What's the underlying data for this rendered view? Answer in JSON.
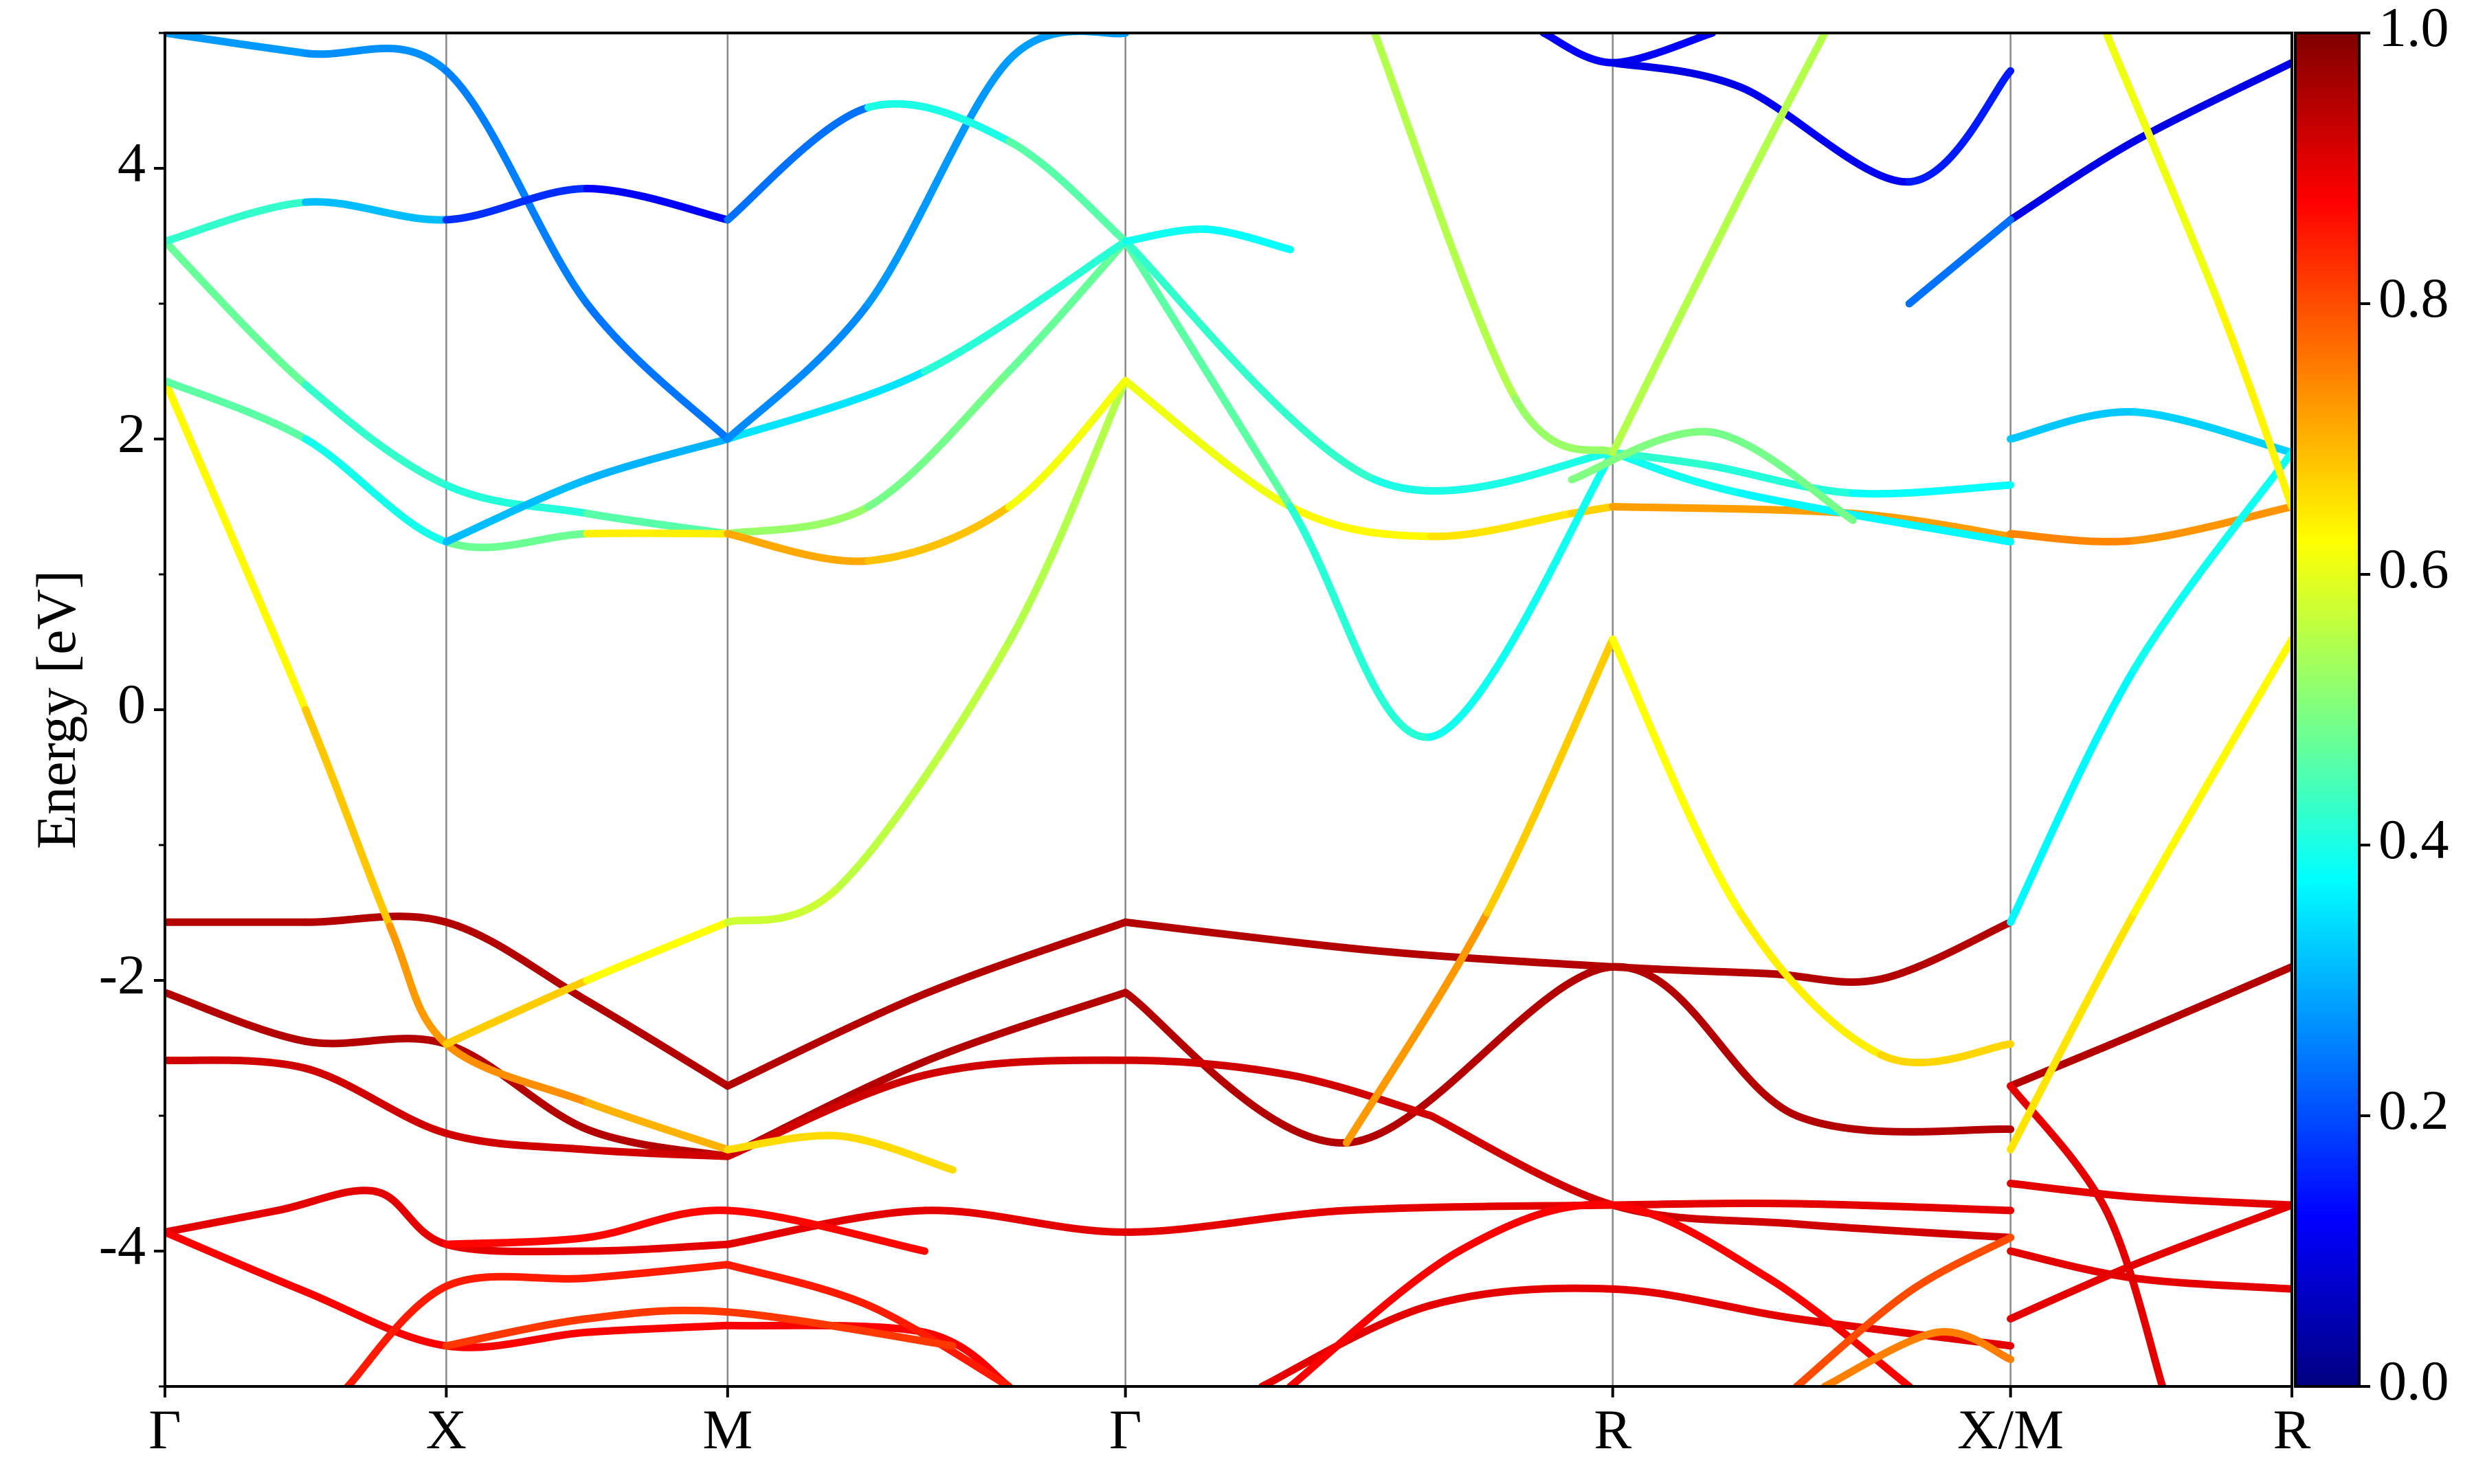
{
  "chart_data": {
    "type": "line",
    "title": "",
    "xlabel": "",
    "ylabel": "Energy [eV]",
    "ylim": [
      -5,
      5
    ],
    "yticks": [
      4,
      2,
      0,
      -2,
      -4
    ],
    "ytick_labels": [
      "4",
      "2",
      "0",
      "-2",
      "-4"
    ],
    "kpath": {
      "labels": [
        "Γ",
        "X",
        "M",
        "Γ",
        "R",
        "X/M",
        "R"
      ],
      "positions": [
        0.0,
        1.0,
        2.0,
        3.414,
        5.146,
        6.56,
        7.56
      ]
    },
    "colorbar": {
      "colormap": "jet",
      "range": [
        0.0,
        1.0
      ],
      "ticks": [
        0.0,
        0.2,
        0.4,
        0.6,
        0.8,
        1.0
      ],
      "tick_labels": [
        "0.0",
        "0.2",
        "0.4",
        "0.6",
        "0.8",
        "1.0"
      ]
    },
    "series": [
      {
        "x": [
          0,
          0.5,
          1.0,
          1.5,
          2.0
        ],
        "y": [
          -1.57,
          -1.57,
          -1.57,
          -2.15,
          -2.78
        ],
        "c": [
          0.95,
          0.95,
          0.95,
          0.95,
          0.95
        ]
      },
      {
        "x": [
          2.0,
          2.7,
          3.414
        ],
        "y": [
          -2.78,
          -2.1,
          -1.57
        ],
        "c": [
          0.95,
          0.95,
          0.95
        ]
      },
      {
        "x": [
          3.414,
          4.3,
          5.146,
          5.7,
          6.1,
          6.56
        ],
        "y": [
          -1.57,
          -1.78,
          -1.9,
          -1.95,
          -1.99,
          -1.57
        ],
        "c": [
          0.95,
          0.95,
          0.95,
          0.95,
          0.95,
          0.95
        ]
      },
      {
        "x": [
          6.56,
          7.0,
          7.56
        ],
        "y": [
          -2.78,
          -2.4,
          -1.9
        ],
        "c": [
          0.95,
          0.95,
          0.95
        ]
      },
      {
        "x": [
          0,
          0.5,
          1.0,
          1.5,
          2.0
        ],
        "y": [
          -2.09,
          -2.45,
          -2.47,
          -3.1,
          -3.3
        ],
        "c": [
          0.95,
          0.95,
          0.95,
          0.95,
          0.95
        ]
      },
      {
        "x": [
          2.0,
          2.7,
          3.414
        ],
        "y": [
          -3.3,
          -2.6,
          -2.09
        ],
        "c": [
          0.95,
          0.95,
          0.95
        ]
      },
      {
        "x": [
          3.414,
          4.2,
          5.146,
          5.8,
          6.56
        ],
        "y": [
          -2.09,
          -3.2,
          -1.9,
          -3.0,
          -3.1
        ],
        "c": [
          0.95,
          0.95,
          0.95,
          0.95,
          0.95
        ]
      },
      {
        "x": [
          0,
          0.5,
          1.0,
          1.5,
          2.0
        ],
        "y": [
          -2.59,
          -2.65,
          -3.13,
          -3.25,
          -3.3
        ],
        "c": [
          0.92,
          0.92,
          0.92,
          0.92,
          0.92
        ]
      },
      {
        "x": [
          2.0,
          2.7,
          3.414,
          4.0,
          4.5
        ],
        "y": [
          -3.3,
          -2.7,
          -2.59,
          -2.7,
          -3.0
        ],
        "c": [
          0.92,
          0.92,
          0.92,
          0.92,
          0.92
        ]
      },
      {
        "x": [
          4.5,
          5.146,
          5.8,
          6.56
        ],
        "y": [
          -3.0,
          -3.66,
          -3.8,
          -3.9
        ],
        "c": [
          0.92,
          0.92,
          0.92,
          0.92
        ]
      },
      {
        "x": [
          0,
          0.4,
          0.75,
          1.0,
          1.5,
          2.0
        ],
        "y": [
          -3.86,
          -3.7,
          -3.56,
          -3.95,
          -4.0,
          -3.95
        ],
        "c": [
          0.9,
          0.9,
          0.9,
          0.9,
          0.9,
          0.9
        ]
      },
      {
        "x": [
          2.0,
          2.7,
          3.414,
          4.2,
          5.146,
          5.8,
          6.56
        ],
        "y": [
          -3.95,
          -3.7,
          -3.86,
          -3.7,
          -3.66,
          -3.65,
          -3.7
        ],
        "c": [
          0.9,
          0.9,
          0.9,
          0.9,
          0.9,
          0.9,
          0.9
        ]
      },
      {
        "x": [
          6.56,
          7.0,
          7.56
        ],
        "y": [
          -3.5,
          -3.6,
          -3.66
        ],
        "c": [
          0.9,
          0.9,
          0.9
        ]
      },
      {
        "x": [
          0,
          0.5,
          1.0,
          1.5,
          2.0
        ],
        "y": [
          -3.86,
          -4.3,
          -4.7,
          -4.6,
          -4.55
        ],
        "c": [
          0.88,
          0.88,
          0.88,
          0.88,
          0.88
        ]
      },
      {
        "x": [
          2.0,
          2.7,
          3.0
        ],
        "y": [
          -4.55,
          -4.6,
          -5.0
        ],
        "c": [
          0.88,
          0.88,
          0.88
        ]
      },
      {
        "x": [
          0.65,
          1.0,
          1.5,
          2.0
        ],
        "y": [
          -5.0,
          -4.26,
          -4.2,
          -4.1
        ],
        "c": [
          0.85,
          0.85,
          0.85,
          0.85
        ]
      },
      {
        "x": [
          2.0,
          2.5,
          3.0
        ],
        "y": [
          -4.1,
          -4.4,
          -5.0
        ],
        "c": [
          0.85,
          0.85,
          0.85
        ]
      },
      {
        "x": [
          1.0,
          1.5,
          2.0,
          2.7
        ],
        "y": [
          -3.95,
          -3.9,
          -3.7,
          -4.0
        ],
        "c": [
          0.87,
          0.87,
          0.87,
          0.87
        ]
      },
      {
        "x": [
          1.0,
          1.5,
          2.0,
          2.8
        ],
        "y": [
          -4.7,
          -4.5,
          -4.45,
          -4.7
        ],
        "c": [
          0.82,
          0.82,
          0.82,
          0.82
        ]
      },
      {
        "x": [
          3.9,
          4.5,
          5.146,
          5.8,
          6.56
        ],
        "y": [
          -5.0,
          -4.4,
          -4.28,
          -4.5,
          -4.7
        ],
        "c": [
          0.9,
          0.9,
          0.9,
          0.9,
          0.9
        ]
      },
      {
        "x": [
          4.0,
          4.6,
          5.146,
          5.7,
          6.2
        ],
        "y": [
          -5.0,
          -4.0,
          -3.66,
          -4.2,
          -5.0
        ],
        "c": [
          0.88,
          0.88,
          0.88,
          0.88,
          0.88
        ]
      },
      {
        "x": [
          6.56,
          7.0,
          7.56
        ],
        "y": [
          -4.0,
          -4.2,
          -4.28
        ],
        "c": [
          0.9,
          0.9,
          0.9
        ]
      },
      {
        "x": [
          6.56,
          7.0,
          7.56
        ],
        "y": [
          -4.5,
          -4.1,
          -3.66
        ],
        "c": [
          0.9,
          0.9,
          0.9
        ]
      },
      {
        "x": [
          6.56,
          6.9,
          7.1
        ],
        "y": [
          -2.78,
          -3.7,
          -5.0
        ],
        "c": [
          0.9,
          0.9,
          0.9
        ]
      },
      {
        "x": [
          5.8,
          6.2,
          6.56
        ],
        "y": [
          -5.0,
          -4.3,
          -3.9
        ],
        "c": [
          0.8,
          0.8,
          0.8
        ]
      },
      {
        "x": [
          5.9,
          6.3,
          6.56
        ],
        "y": [
          -5.0,
          -4.6,
          -4.8
        ],
        "c": [
          0.75,
          0.75,
          0.75
        ]
      },
      {
        "x": [
          0,
          0.5,
          0.8,
          1.0,
          1.5,
          2.0
        ],
        "y": [
          2.43,
          0.0,
          -1.6,
          -2.47,
          -2.9,
          -3.25
        ],
        "c": [
          0.6,
          0.66,
          0.7,
          0.75,
          0.72,
          0.68
        ]
      },
      {
        "x": [
          1.0,
          1.5,
          2.0
        ],
        "y": [
          -2.47,
          -2.0,
          -1.57
        ],
        "c": [
          0.7,
          0.65,
          0.6
        ]
      },
      {
        "x": [
          2.0,
          2.4,
          3.0,
          3.414
        ],
        "y": [
          -1.57,
          -1.3,
          0.5,
          2.43
        ],
        "c": [
          0.58,
          0.57,
          0.55,
          0.55
        ]
      },
      {
        "x": [
          2.0,
          2.4,
          2.8
        ],
        "y": [
          -3.25,
          -3.15,
          -3.4
        ],
        "c": [
          0.66,
          0.66,
          0.66
        ]
      },
      {
        "x": [
          3.414,
          4.0,
          4.5,
          5.0,
          5.146
        ],
        "y": [
          2.43,
          1.5,
          1.28,
          1.45,
          1.5
        ],
        "c": [
          0.6,
          0.62,
          0.64,
          0.66,
          0.68
        ]
      },
      {
        "x": [
          4.2,
          4.7,
          5.146
        ],
        "y": [
          -3.2,
          -1.5,
          0.52
        ],
        "c": [
          0.75,
          0.7,
          0.65
        ]
      },
      {
        "x": [
          5.146,
          5.6,
          6.1,
          6.56
        ],
        "y": [
          0.52,
          -1.5,
          -2.55,
          -2.47
        ],
        "c": [
          0.62,
          0.63,
          0.65,
          0.68
        ]
      },
      {
        "x": [
          6.56,
          7.0,
          7.56
        ],
        "y": [
          -3.25,
          -1.5,
          0.52
        ],
        "c": [
          0.66,
          0.64,
          0.62
        ]
      },
      {
        "x": [
          5.146,
          6.0,
          6.56
        ],
        "y": [
          1.5,
          1.45,
          1.28
        ],
        "c": [
          0.72,
          0.72,
          0.72
        ]
      },
      {
        "x": [
          6.56,
          7.0,
          7.56
        ],
        "y": [
          1.3,
          1.25,
          1.5
        ],
        "c": [
          0.75,
          0.74,
          0.72
        ]
      },
      {
        "x": [
          0,
          0.5,
          1.0,
          1.5,
          2.0
        ],
        "y": [
          3.46,
          2.4,
          1.66,
          1.45,
          1.3
        ],
        "c": [
          0.5,
          0.45,
          0.4,
          0.42,
          0.5
        ]
      },
      {
        "x": [
          2.0,
          2.5,
          3.0,
          3.414
        ],
        "y": [
          1.3,
          1.5,
          2.5,
          3.46
        ],
        "c": [
          0.55,
          0.5,
          0.48,
          0.47
        ]
      },
      {
        "x": [
          0,
          0.5,
          1.0,
          1.5,
          2.0
        ],
        "y": [
          2.43,
          2.0,
          1.24,
          1.3,
          1.3
        ],
        "c": [
          0.5,
          0.43,
          0.36,
          0.6,
          0.68
        ]
      },
      {
        "x": [
          2.0,
          2.5,
          3.0,
          3.414
        ],
        "y": [
          1.3,
          1.1,
          1.5,
          2.43
        ],
        "c": [
          0.7,
          0.72,
          0.65,
          0.58
        ]
      },
      {
        "x": [
          1.0,
          1.5,
          2.0
        ],
        "y": [
          1.24,
          1.7,
          2.0
        ],
        "c": [
          0.32,
          0.3,
          0.3
        ]
      },
      {
        "x": [
          2.0,
          2.7,
          3.414
        ],
        "y": [
          2.0,
          2.5,
          3.46
        ],
        "c": [
          0.32,
          0.38,
          0.45
        ]
      },
      {
        "x": [
          3.414,
          4.0,
          4.5,
          5.146
        ],
        "y": [
          3.46,
          1.5,
          -0.2,
          1.9
        ],
        "c": [
          0.48,
          0.45,
          0.38,
          0.4
        ]
      },
      {
        "x": [
          3.414,
          4.3,
          5.146
        ],
        "y": [
          3.46,
          1.7,
          1.9
        ],
        "c": [
          0.45,
          0.4,
          0.4
        ]
      },
      {
        "x": [
          5.146,
          5.6,
          6.56
        ],
        "y": [
          1.9,
          1.6,
          1.24
        ],
        "c": [
          0.4,
          0.38,
          0.36
        ]
      },
      {
        "x": [
          5.146,
          5.5,
          6.0,
          6.56
        ],
        "y": [
          1.9,
          1.8,
          1.6,
          1.66
        ],
        "c": [
          0.42,
          0.42,
          0.4,
          0.36
        ]
      },
      {
        "x": [
          5.0,
          5.5,
          6.0
        ],
        "y": [
          1.7,
          2.05,
          1.4
        ],
        "c": [
          0.5,
          0.5,
          0.48
        ]
      },
      {
        "x": [
          6.56,
          7.0,
          7.56
        ],
        "y": [
          2.0,
          2.2,
          1.9
        ],
        "c": [
          0.32,
          0.32,
          0.34
        ]
      },
      {
        "x": [
          6.56,
          7.0,
          7.56
        ],
        "y": [
          -1.57,
          0.3,
          1.9
        ],
        "c": [
          0.36,
          0.38,
          0.4
        ]
      },
      {
        "x": [
          0,
          0.5,
          1.0,
          1.5,
          2.0
        ],
        "y": [
          5.0,
          4.85,
          4.72,
          3.0,
          2.0
        ],
        "c": [
          0.28,
          0.27,
          0.26,
          0.24,
          0.24
        ]
      },
      {
        "x": [
          0,
          0.5,
          1.0,
          1.5,
          2.0
        ],
        "y": [
          3.46,
          3.75,
          3.62,
          3.85,
          3.62
        ],
        "c": [
          0.45,
          0.4,
          0.22,
          0.12,
          0.12
        ]
      },
      {
        "x": [
          2.0,
          2.5,
          3.0,
          3.414
        ],
        "y": [
          2.0,
          3.0,
          4.8,
          5.0
        ],
        "c": [
          0.25,
          0.27,
          0.28,
          0.28
        ]
      },
      {
        "x": [
          2.0,
          2.5,
          3.0,
          3.414
        ],
        "y": [
          3.62,
          4.45,
          4.2,
          3.46
        ],
        "c": [
          0.12,
          0.35,
          0.45,
          0.47
        ]
      },
      {
        "x": [
          3.414,
          3.7,
          4.0
        ],
        "y": [
          3.46,
          3.55,
          3.4
        ],
        "c": [
          0.4,
          0.38,
          0.38
        ]
      },
      {
        "x": [
          4.9,
          5.146,
          5.5
        ],
        "y": [
          5.0,
          4.78,
          5.0
        ],
        "c": [
          0.12,
          0.12,
          0.12
        ]
      },
      {
        "x": [
          5.146,
          5.6,
          6.2,
          6.56
        ],
        "y": [
          4.78,
          4.6,
          3.9,
          4.72
        ],
        "c": [
          0.1,
          0.1,
          0.12,
          0.18
        ]
      },
      {
        "x": [
          6.56,
          7.0,
          7.56
        ],
        "y": [
          3.62,
          4.2,
          4.78
        ],
        "c": [
          0.1,
          0.1,
          0.1
        ]
      },
      {
        "x": [
          4.3,
          4.8,
          5.146
        ],
        "y": [
          5.0,
          2.3,
          1.9
        ],
        "c": [
          0.55,
          0.55,
          0.5
        ]
      },
      {
        "x": [
          5.146,
          5.6,
          5.9
        ],
        "y": [
          1.9,
          3.8,
          5.0
        ],
        "c": [
          0.55,
          0.55,
          0.55
        ]
      },
      {
        "x": [
          6.9,
          7.3,
          7.56
        ],
        "y": [
          5.0,
          3.0,
          1.5
        ],
        "c": [
          0.6,
          0.62,
          0.65
        ]
      },
      {
        "x": [
          6.2,
          6.56
        ],
        "y": [
          3.0,
          3.62
        ],
        "c": [
          0.25,
          0.22
        ]
      }
    ]
  }
}
